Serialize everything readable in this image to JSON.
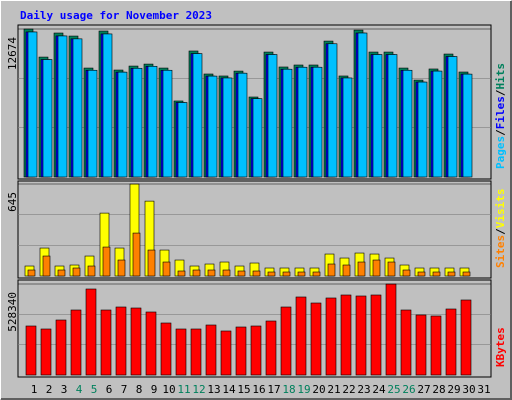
{
  "chart_data": {
    "type": "bar",
    "title": "Daily usage for November 2023",
    "categories": [
      "1",
      "2",
      "3",
      "4",
      "5",
      "6",
      "7",
      "8",
      "9",
      "10",
      "11",
      "12",
      "13",
      "14",
      "15",
      "16",
      "17",
      "18",
      "19",
      "20",
      "21",
      "22",
      "23",
      "24",
      "25",
      "26",
      "27",
      "28",
      "29",
      "30",
      "31"
    ],
    "category_color": "#000000",
    "highlight_color": "#00805c",
    "highlighted": [
      3,
      4,
      10,
      11,
      17,
      18,
      24,
      25
    ],
    "separator": "/",
    "panels": [
      {
        "ylim": [
          0,
          12674
        ],
        "yticks": [
          12674
        ],
        "series": [
          {
            "name": "Hits",
            "color": "#00805c",
            "values": [
              12674,
              10270,
              12330,
              12070,
              9330,
              12500,
              9160,
              9500,
              9670,
              9330,
              6510,
              10790,
              8820,
              8650,
              9070,
              6850,
              10700,
              9420,
              9590,
              9590,
              11640,
              8650,
              12580,
              10700,
              10700,
              9330,
              8300,
              9250,
              10530,
              8990,
              null
            ]
          },
          {
            "name": "Files",
            "color": "#0000ff",
            "values": [
              12420,
              10060,
              12080,
              11830,
              9140,
              12250,
              8980,
              9310,
              9480,
              9140,
              6380,
              10570,
              8640,
              8480,
              8890,
              6710,
              10490,
              9230,
              9400,
              9400,
              11410,
              8480,
              12330,
              10490,
              10490,
              9140,
              8130,
              9070,
              10320,
              8810,
              null
            ]
          },
          {
            "name": "Pages",
            "color": "#00c0ff",
            "values": [
              12420,
              10060,
              12080,
              11830,
              9140,
              12250,
              8980,
              9310,
              9480,
              9140,
              6380,
              10570,
              8640,
              8480,
              8890,
              6710,
              10490,
              9230,
              9400,
              9400,
              11410,
              8480,
              12330,
              10490,
              10490,
              9140,
              8130,
              9070,
              10320,
              8810,
              null
            ]
          }
        ]
      },
      {
        "ylim": [
          0,
          645
        ],
        "yticks": [
          645
        ],
        "series": [
          {
            "name": "Visits",
            "color": "#ffff00",
            "values": [
              70,
              196,
              70,
              77,
              140,
              441,
              196,
              645,
              525,
              182,
              112,
              70,
              84,
              98,
              70,
              91,
              56,
              56,
              56,
              56,
              154,
              126,
              161,
              154,
              126,
              77,
              56,
              56,
              56,
              56,
              null
            ]
          },
          {
            "name": "Sites",
            "color": "#ff8000",
            "values": [
              42,
              140,
              42,
              56,
              70,
              203,
              112,
              301,
              182,
              98,
              35,
              42,
              42,
              42,
              35,
              35,
              28,
              28,
              28,
              28,
              84,
              77,
              98,
              112,
              98,
              42,
              28,
              28,
              28,
              28,
              null
            ]
          }
        ]
      },
      {
        "ylim": [
          0,
          528340
        ],
        "yticks": [
          528340
        ],
        "series": [
          {
            "name": "KBytes",
            "color": "#ff0000",
            "values": [
              284500,
              267100,
              319300,
              377400,
              499300,
              377400,
              394800,
              389000,
              365800,
              301900,
              267100,
              267100,
              290300,
              255500,
              278700,
              284500,
              313500,
              394800,
              452900,
              418000,
              447100,
              464500,
              458700,
              464500,
              528340,
              377400,
              348400,
              342600,
              383200,
              435500,
              null
            ]
          }
        ]
      }
    ]
  }
}
